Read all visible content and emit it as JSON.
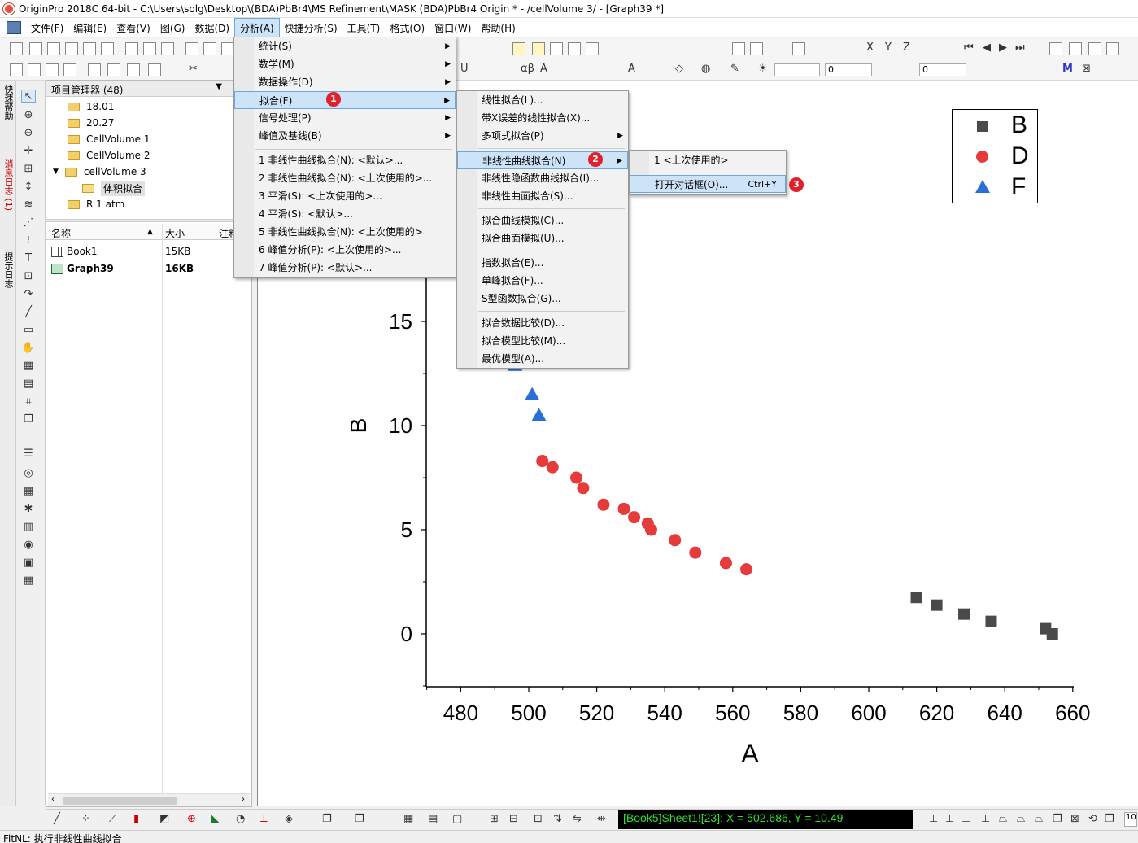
{
  "window": {
    "title": "OriginPro 2018C 64-bit - C:\\Users\\solg\\Desktop\\(BDA)PbBr4\\MS Refinement\\MASK (BDA)PbBr4 Origin * - /cellVolume 3/ - [Graph39 *]"
  },
  "menubar": {
    "items": [
      "文件(F)",
      "编辑(E)",
      "查看(V)",
      "图(G)",
      "数据(D)",
      "分析(A)",
      "快捷分析(S)",
      "工具(T)",
      "格式(O)",
      "窗口(W)",
      "帮助(H)"
    ],
    "active_index": 5
  },
  "side_tabs": [
    "快速帮助",
    "消息日志 (1)",
    "提示日志"
  ],
  "project_manager": {
    "title": "项目管理器 (48)",
    "tree": [
      {
        "label": "18.01",
        "level": 1
      },
      {
        "label": "20.27",
        "level": 1
      },
      {
        "label": "CellVolume 1",
        "level": 1
      },
      {
        "label": "CellVolume 2",
        "level": 1
      },
      {
        "label": "cellVolume 3",
        "level": 1,
        "expanded": true
      },
      {
        "label": "体积拟合",
        "level": 2,
        "selected": true
      },
      {
        "label": "R 1 atm",
        "level": 1
      }
    ],
    "columns": [
      "名称",
      "大小",
      "注释"
    ],
    "files": [
      {
        "name": "Book1",
        "size": "15KB",
        "type": "book"
      },
      {
        "name": "Graph39",
        "size": "16KB",
        "type": "graph",
        "bold": true
      }
    ]
  },
  "analysis_menu": {
    "items": [
      "统计(S)",
      "数学(M)",
      "数据操作(D)",
      "拟合(F)",
      "信号处理(P)",
      "峰值及基线(B)"
    ],
    "highlight_index": 3,
    "recent": [
      "1 非线性曲线拟合(N): <默认>...",
      "2 非线性曲线拟合(N): <上次使用的>...",
      "3 平滑(S): <上次使用的>...",
      "4 平滑(S): <默认>...",
      "5 非线性曲线拟合(N): <上次使用的>",
      "6 峰值分析(P): <上次使用的>...",
      "7 峰值分析(P): <默认>..."
    ]
  },
  "fit_menu": {
    "groups": [
      [
        "线性拟合(L)...",
        "带X误差的线性拟合(X)...",
        "多项式拟合(P)"
      ],
      [
        "非线性曲线拟合(N)",
        "非线性隐函数曲线拟合(I)...",
        "非线性曲面拟合(S)..."
      ],
      [
        "拟合曲线模拟(C)...",
        "拟合曲面模拟(U)..."
      ],
      [
        "指数拟合(E)...",
        "单峰拟合(F)...",
        "S型函数拟合(G)..."
      ],
      [
        "拟合数据比较(D)...",
        "拟合模型比较(M)...",
        "最优模型(A)..."
      ]
    ],
    "highlight": "非线性曲线拟合(N)"
  },
  "nlfit_menu": {
    "items": [
      "1 <上次使用的>",
      "打开对话框(O)..."
    ],
    "shortcut": "Ctrl+Y",
    "highlight_index": 1
  },
  "badges": [
    "1",
    "2",
    "3"
  ],
  "chart_data": {
    "type": "scatter",
    "xlabel": "A",
    "ylabel": "B",
    "xlim": [
      470,
      660
    ],
    "ylim": [
      -2.5,
      30
    ],
    "xticks": [
      480,
      500,
      520,
      540,
      560,
      580,
      600,
      620,
      640,
      660
    ],
    "yticks": [
      0,
      5,
      10,
      15
    ],
    "legend_position": "top-right",
    "series": [
      {
        "name": "B",
        "marker": "square",
        "color": "#4a4a4a",
        "x": [
          614,
          620,
          628,
          636,
          652,
          654
        ],
        "y": [
          1.75,
          1.38,
          0.95,
          0.6,
          0.25,
          0.0
        ]
      },
      {
        "name": "D",
        "marker": "circle",
        "color": "#e63b3b",
        "x": [
          504,
          507,
          514,
          516,
          522,
          528,
          531,
          535,
          536,
          543,
          549,
          558,
          564
        ],
        "y": [
          8.3,
          8.0,
          7.5,
          7.0,
          6.2,
          6.0,
          5.6,
          5.3,
          5.0,
          4.5,
          3.9,
          3.4,
          3.1
        ]
      },
      {
        "name": "F",
        "marker": "triangle",
        "color": "#2a6fd6",
        "x": [
          496,
          501,
          503
        ],
        "y": [
          12.9,
          11.5,
          10.5
        ]
      }
    ]
  },
  "coord_readout": "[Book5]Sheet1![23]:  X = 502.686, Y = 10.49",
  "status": "FitNL: 执行非线性曲线拟合",
  "zoom_field": "10"
}
